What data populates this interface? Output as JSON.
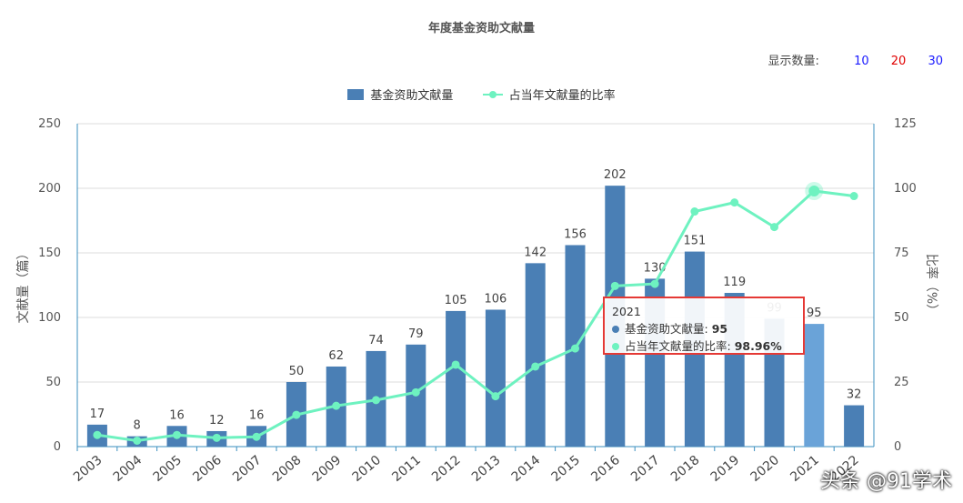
{
  "chart_title": "年度基金资助文献量",
  "display_count": {
    "label": "显示数量:",
    "options": [
      {
        "value": "10",
        "color": "#1a1aff"
      },
      {
        "value": "20",
        "color": "#e00000"
      },
      {
        "value": "30",
        "color": "#1a1aff"
      }
    ]
  },
  "legend": [
    {
      "name": "基金资助文献量",
      "color": "#4a7fb5",
      "kind": "bar"
    },
    {
      "name": "占当年文献量的比率",
      "color": "#6ef2c0",
      "kind": "line"
    }
  ],
  "tooltip": {
    "year": "2021",
    "bar_label": "基金资助文献量:",
    "bar_value": "95",
    "line_label": "占当年文献量的比率:",
    "line_value": "98.96%"
  },
  "watermark": "头条 @91学术",
  "chart_data": {
    "type": "bar",
    "categories": [
      "2003",
      "2004",
      "2005",
      "2006",
      "2007",
      "2008",
      "2009",
      "2010",
      "2011",
      "2012",
      "2013",
      "2014",
      "2015",
      "2016",
      "2017",
      "2018",
      "2019",
      "2020",
      "2021",
      "2022"
    ],
    "series": [
      {
        "name": "基金资助文献量",
        "kind": "bar",
        "axis": "left",
        "color": "#4a7fb5",
        "values": [
          17,
          8,
          16,
          12,
          16,
          50,
          62,
          74,
          79,
          105,
          106,
          142,
          156,
          202,
          130,
          151,
          119,
          99,
          95,
          32
        ]
      },
      {
        "name": "占当年文献量的比率",
        "kind": "line",
        "axis": "right",
        "color": "#6ef2c0",
        "values": [
          4.5,
          2.3,
          4.5,
          3.4,
          3.8,
          12.3,
          15.8,
          18,
          21,
          31.7,
          19.5,
          31,
          38,
          62.2,
          63,
          91,
          94.5,
          85,
          98.96,
          97
        ]
      }
    ],
    "ylabel": "文献量（篇）",
    "y2label": "比率（%）",
    "ylim": [
      0,
      250
    ],
    "y2lim": [
      0,
      125
    ],
    "yticks": [
      0,
      50,
      100,
      150,
      200,
      250
    ],
    "y2ticks": [
      0,
      25,
      50,
      75,
      100,
      125
    ],
    "highlight_index": 18,
    "grid": true
  }
}
